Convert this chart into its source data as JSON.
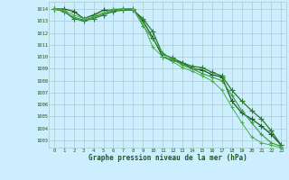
{
  "title": "Graphe pression niveau de la mer (hPa)",
  "background_color": "#cceeff",
  "grid_color": "#aacccc",
  "text_color": "#1a5c1a",
  "x_ticks": [
    0,
    1,
    2,
    3,
    4,
    5,
    6,
    7,
    8,
    9,
    10,
    11,
    12,
    13,
    14,
    15,
    16,
    17,
    18,
    19,
    20,
    21,
    22,
    23
  ],
  "y_ticks": [
    1003,
    1004,
    1005,
    1006,
    1007,
    1008,
    1009,
    1010,
    1011,
    1012,
    1013,
    1014
  ],
  "ylim": [
    1002.4,
    1014.6
  ],
  "xlim": [
    -0.5,
    23.5
  ],
  "series": [
    {
      "y": [
        1014.0,
        1014.0,
        1013.8,
        1013.2,
        1013.5,
        1013.9,
        1013.9,
        1014.0,
        1014.0,
        1013.0,
        1011.6,
        1010.0,
        1009.7,
        1009.5,
        1009.0,
        1008.9,
        1008.5,
        1008.3,
        1006.3,
        1005.3,
        1004.8,
        1004.2,
        1003.5,
        1002.6
      ],
      "color": "#1a5c1a",
      "linewidth": 0.9,
      "marker": "+",
      "markersize": 4
    },
    {
      "y": [
        1014.0,
        1013.8,
        1013.2,
        1013.0,
        1013.2,
        1013.5,
        1013.8,
        1013.9,
        1013.9,
        1013.2,
        1012.1,
        1010.2,
        1009.9,
        1009.5,
        1009.2,
        1009.1,
        1008.7,
        1008.4,
        1007.2,
        1006.3,
        1005.5,
        1004.8,
        1003.8,
        1002.6
      ],
      "color": "#2a7a2a",
      "linewidth": 0.9,
      "marker": "+",
      "markersize": 4
    },
    {
      "y": [
        1014.0,
        1013.8,
        1013.3,
        1013.1,
        1013.3,
        1013.6,
        1013.9,
        1014.0,
        1014.0,
        1012.6,
        1011.5,
        1010.3,
        1009.8,
        1009.3,
        1009.0,
        1008.6,
        1008.3,
        1008.0,
        1006.8,
        1005.5,
        1004.5,
        1003.5,
        1002.8,
        1002.5
      ],
      "color": "#3a9a3a",
      "linewidth": 0.8,
      "marker": "+",
      "markersize": 3.5
    },
    {
      "y": [
        1014.0,
        1013.9,
        1013.5,
        1013.2,
        1013.4,
        1013.7,
        1014.0,
        1014.0,
        1014.0,
        1012.8,
        1010.8,
        1010.0,
        1009.6,
        1009.1,
        1008.8,
        1008.4,
        1008.0,
        1007.2,
        1005.8,
        1004.5,
        1003.3,
        1002.8,
        1002.6,
        1002.4
      ],
      "color": "#4ab04a",
      "linewidth": 0.7,
      "marker": "+",
      "markersize": 3.5
    }
  ]
}
